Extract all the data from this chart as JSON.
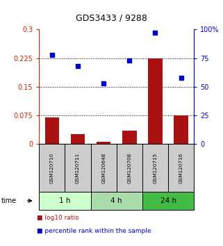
{
  "title": "GDS3433 / 9288",
  "categories": [
    "GSM120710",
    "GSM120711",
    "GSM120648",
    "GSM120708",
    "GSM120715",
    "GSM120716"
  ],
  "log10_ratio": [
    0.07,
    0.025,
    0.005,
    0.035,
    0.225,
    0.075
  ],
  "percentile_rank_pct": [
    78,
    68,
    53,
    73,
    97,
    58
  ],
  "left_yticks": [
    0,
    0.075,
    0.15,
    0.225,
    0.3
  ],
  "right_yticks": [
    0,
    25,
    50,
    75,
    100
  ],
  "right_ytick_labels": [
    "0",
    "25",
    "50",
    "75",
    "100%"
  ],
  "bar_color": "#aa1111",
  "dot_color": "#0000cc",
  "legend_bar_label": "log10 ratio",
  "legend_dot_label": "percentile rank within the sample",
  "left_axis_color": "#cc2200",
  "right_axis_color": "#0000cc",
  "ylim_left": [
    0,
    0.3
  ],
  "ylim_right": [
    0,
    100
  ],
  "sample_box_color": "#cccccc",
  "group_colors": [
    "#ccffcc",
    "#aaddaa",
    "#44bb44"
  ],
  "group_spans": [
    [
      0,
      2,
      "1 h"
    ],
    [
      2,
      4,
      "4 h"
    ],
    [
      4,
      6,
      "24 h"
    ]
  ]
}
